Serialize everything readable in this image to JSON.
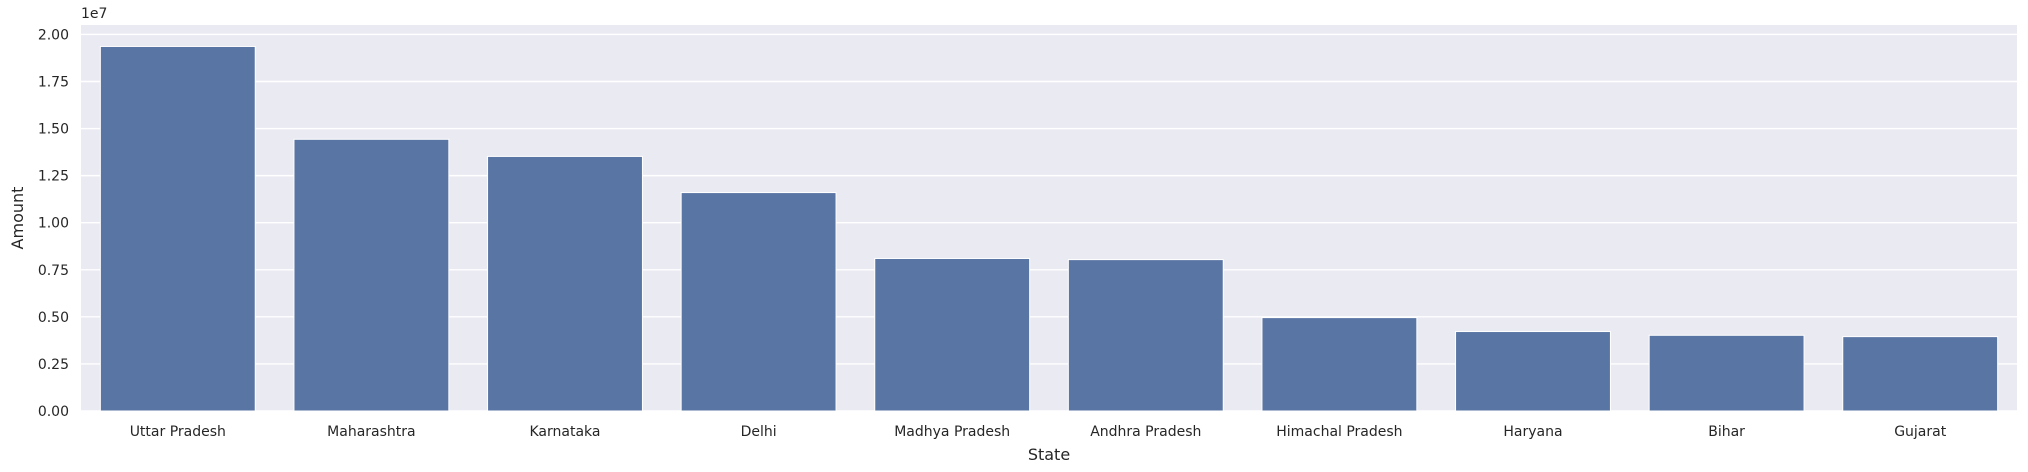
{
  "chart_data": {
    "type": "bar",
    "title": "",
    "xlabel": "State",
    "ylabel": "Amount",
    "offset_label": "1e7",
    "categories": [
      "Uttar Pradesh",
      "Maharashtra",
      "Karnataka",
      "Delhi",
      "Madhya Pradesh",
      "Andhra Pradesh",
      "Himachal Pradesh",
      "Haryana",
      "Bihar",
      "Gujarat"
    ],
    "values": [
      19360000,
      14430000,
      13520000,
      11600000,
      8100000,
      8040000,
      4960000,
      4220000,
      4020000,
      3950000
    ],
    "ylim": [
      0,
      20500000
    ],
    "yticks": [
      0,
      2500000,
      5000000,
      7500000,
      10000000,
      12500000,
      15000000,
      17500000,
      20000000
    ],
    "ytick_labels": [
      "0.00",
      "0.25",
      "0.50",
      "0.75",
      "1.00",
      "1.25",
      "1.50",
      "1.75",
      "2.00"
    ],
    "grid": true,
    "colors": {
      "bar": "#5975a4",
      "plot_background": "#eaeaf2",
      "grid": "#ffffff",
      "text": "#262626"
    }
  }
}
